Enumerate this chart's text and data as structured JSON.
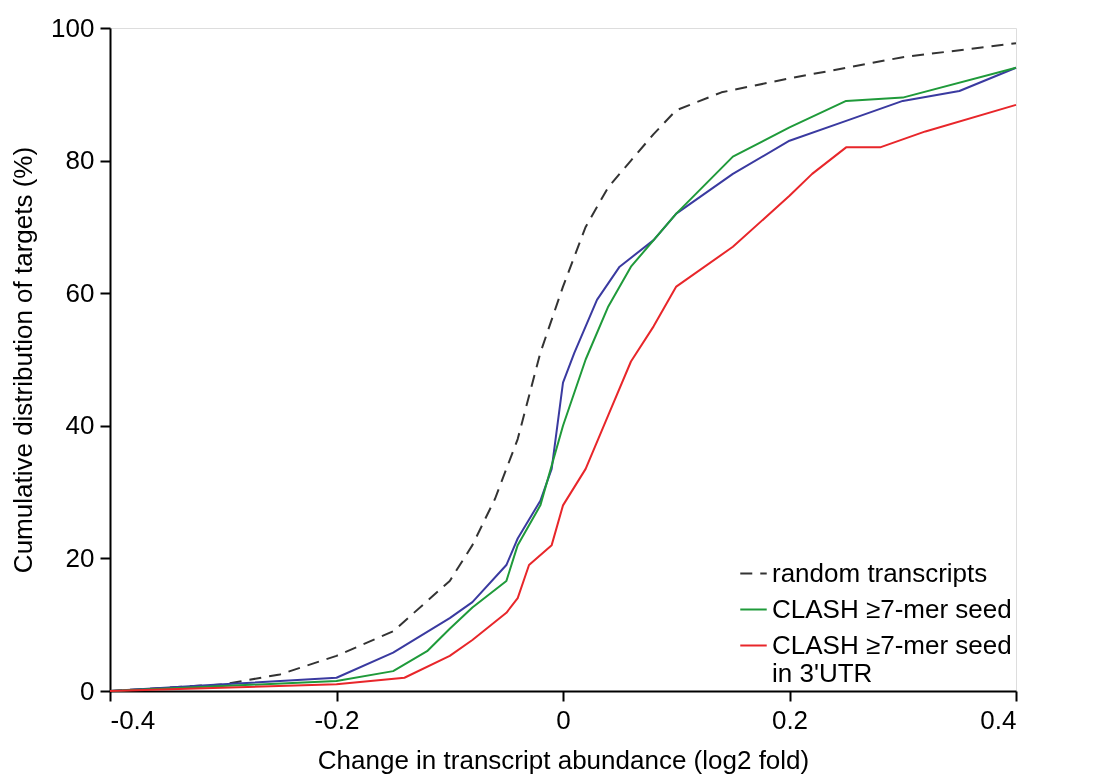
{
  "chart_data": {
    "type": "line",
    "xlabel": "Change in transcript abundance (log2 fold)",
    "ylabel": "Cumulative distribution of targets (%)",
    "xlim": [
      -0.4,
      0.4
    ],
    "xticks": [
      -0.4,
      -0.2,
      0,
      0.2,
      0.4
    ],
    "ylim": [
      0,
      100
    ],
    "yticks": [
      0,
      20,
      40,
      60,
      80,
      100
    ],
    "grid": false,
    "legend": "bottom right",
    "marker": "none",
    "series": [
      {
        "name": "random transcripts",
        "color": "#333333",
        "line_style": "dashed",
        "x": [
          -0.4,
          -0.3,
          -0.25,
          -0.2,
          -0.15,
          -0.1,
          -0.08,
          -0.06,
          -0.04,
          -0.02,
          0,
          0.02,
          0.04,
          0.06,
          0.08,
          0.1,
          0.14,
          0.2,
          0.3,
          0.4
        ],
        "values": [
          0,
          1,
          2.5,
          5.3,
          9,
          16.6,
          22,
          29,
          38,
          51,
          61,
          70,
          76,
          80,
          84,
          87.6,
          90.3,
          92.4,
          95.6,
          97.7
        ]
      },
      {
        "color": "#3a3aa0",
        "line_style": "solid",
        "x": [
          -0.4,
          -0.3,
          -0.2,
          -0.15,
          -0.1,
          -0.08,
          -0.05,
          -0.04,
          -0.02,
          -0.01,
          0,
          0.01,
          0.03,
          0.05,
          0.08,
          0.1,
          0.15,
          0.2,
          0.25,
          0.3,
          0.35,
          0.4
        ],
        "values": [
          0,
          1,
          2,
          5.8,
          11,
          13.4,
          19,
          23,
          28.7,
          33.5,
          46.5,
          51,
          59,
          64,
          68,
          72,
          78,
          83,
          86,
          89,
          90.5,
          94
        ]
      },
      {
        "name": "CLASH ≥7-mer seed",
        "color": "#1f9a3a",
        "line_style": "solid",
        "x": [
          -0.4,
          -0.2,
          -0.15,
          -0.12,
          -0.1,
          -0.08,
          -0.05,
          -0.04,
          -0.02,
          0,
          0.02,
          0.04,
          0.06,
          0.1,
          0.15,
          0.2,
          0.25,
          0.3,
          0.4
        ],
        "values": [
          0,
          1.5,
          3,
          6,
          9.4,
          12.6,
          16.6,
          22,
          28,
          40,
          50,
          58,
          64,
          72,
          80.6,
          85,
          89,
          89.5,
          94
        ]
      },
      {
        "name": "CLASH ≥7-mer seed\nin 3'UTR",
        "color": "#e8262a",
        "line_style": "solid",
        "x": [
          -0.4,
          -0.2,
          -0.14,
          -0.1,
          -0.08,
          -0.05,
          -0.04,
          -0.03,
          -0.01,
          0,
          0.02,
          0.04,
          0.06,
          0.08,
          0.1,
          0.15,
          0.2,
          0.22,
          0.25,
          0.28,
          0.32,
          0.4
        ],
        "values": [
          0,
          1,
          2,
          5.3,
          7.7,
          11.8,
          14,
          19,
          22,
          28,
          33.5,
          41.6,
          49.7,
          55,
          61,
          67,
          74.7,
          78,
          82,
          82,
          84.4,
          88.4
        ]
      }
    ]
  }
}
